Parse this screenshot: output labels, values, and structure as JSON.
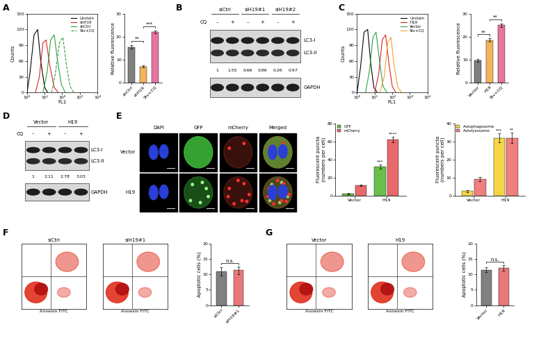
{
  "chart_data": [
    {
      "panel": "A",
      "type": "line",
      "log": "x",
      "xlabel": "FL1",
      "ylabel": "Counts",
      "xlim": [
        1,
        10000
      ],
      "xticks": [
        {
          "value": 1,
          "label": "10⁰"
        },
        {
          "value": 10,
          "label": "10¹"
        },
        {
          "value": 100,
          "label": "10²"
        },
        {
          "value": 1000,
          "label": "10³"
        },
        {
          "value": 10000,
          "label": "10⁴"
        }
      ],
      "ylim": [
        0,
        150
      ],
      "yticks": [
        0,
        30,
        60,
        90,
        120,
        150
      ],
      "legend": "upper right",
      "series": [
        {
          "name": "Unstain",
          "color": "#000000",
          "line_style": "solid",
          "x": [
            1,
            1.5,
            2.5,
            4,
            6,
            10,
            15
          ],
          "values": [
            0,
            40,
            110,
            120,
            60,
            10,
            0
          ]
        },
        {
          "name": "shH19",
          "color": "#e02020",
          "line_style": "solid",
          "x": [
            3,
            5,
            8,
            12,
            20,
            35,
            60
          ],
          "values": [
            0,
            30,
            95,
            100,
            50,
            10,
            0
          ]
        },
        {
          "name": "shCtrl",
          "color": "#2e9e3e",
          "line_style": "solid",
          "x": [
            8,
            14,
            22,
            35,
            55,
            90,
            150
          ],
          "values": [
            0,
            40,
            100,
            110,
            60,
            15,
            0
          ]
        },
        {
          "name": "Stv+CQ",
          "color": "#2e9e3e",
          "line_style": "dashed",
          "x": [
            25,
            40,
            70,
            110,
            170,
            280,
            450
          ],
          "values": [
            0,
            35,
            95,
            105,
            55,
            12,
            0
          ]
        }
      ]
    },
    {
      "panel": "A",
      "type": "bar",
      "categories": [
        "shCtrl",
        "shH19",
        "Stv+CQ"
      ],
      "values": [
        15.5,
        7,
        22
      ],
      "errors": [
        0.8,
        0.5,
        0.7
      ],
      "colors": [
        "#808080",
        "#f2b35a",
        "#e8749f"
      ],
      "ylabel": "Relative fluorescence",
      "ylim": [
        0,
        30
      ],
      "yticks": [
        0,
        10,
        20,
        30
      ],
      "annotations": [
        {
          "text": "**",
          "between": [
            "shCtrl",
            "shH19"
          ]
        },
        {
          "text": "***",
          "between": [
            "shH19",
            "Stv+CQ"
          ]
        }
      ]
    },
    {
      "panel": "C",
      "type": "line",
      "log": "x",
      "xlabel": "FL1",
      "ylabel": "Counts",
      "xlim": [
        1,
        10000
      ],
      "xticks": [
        {
          "value": 1,
          "label": "10⁰"
        },
        {
          "value": 10,
          "label": "10¹"
        },
        {
          "value": 100,
          "label": "10²"
        },
        {
          "value": 1000,
          "label": "10³"
        },
        {
          "value": 10000,
          "label": "10⁴"
        }
      ],
      "ylim": [
        0,
        150
      ],
      "yticks": [
        0,
        30,
        60,
        90,
        120,
        150
      ],
      "legend": "upper right",
      "series": [
        {
          "name": "Unstain",
          "color": "#000000",
          "line_style": "solid",
          "x": [
            1,
            1.6,
            2.5,
            4,
            6,
            9,
            14
          ],
          "values": [
            0,
            50,
            115,
            120,
            55,
            10,
            0
          ]
        },
        {
          "name": "H19",
          "color": "#e02020",
          "line_style": "solid",
          "x": [
            10,
            17,
            27,
            42,
            65,
            100,
            160
          ],
          "values": [
            0,
            35,
            100,
            110,
            55,
            12,
            0
          ]
        },
        {
          "name": "Vector",
          "color": "#2e9e3e",
          "line_style": "solid",
          "x": [
            3,
            5,
            8,
            12,
            19,
            30,
            50
          ],
          "values": [
            0,
            40,
            105,
            115,
            60,
            12,
            0
          ]
        },
        {
          "name": "Stv+CQ",
          "color": "#f0a030",
          "line_style": "solid",
          "x": [
            20,
            35,
            55,
            85,
            130,
            210,
            350
          ],
          "values": [
            0,
            30,
            95,
            105,
            50,
            10,
            0
          ]
        }
      ]
    },
    {
      "panel": "C",
      "type": "bar",
      "categories": [
        "Vector",
        "H19",
        "Stv+CQ"
      ],
      "values": [
        9.5,
        18.5,
        25
      ],
      "errors": [
        0.6,
        0.7,
        0.8
      ],
      "colors": [
        "#808080",
        "#f2b35a",
        "#e8749f"
      ],
      "ylabel": "Relative fluorescence",
      "ylim": [
        0,
        30
      ],
      "yticks": [
        0,
        10,
        20,
        30
      ],
      "annotations": [
        {
          "text": "**",
          "between": [
            "Vector",
            "H19"
          ]
        },
        {
          "text": "**",
          "between": [
            "H19",
            "Stv+CQ"
          ]
        }
      ]
    },
    {
      "panel": "E",
      "type": "bar",
      "categories": [
        "Vector",
        "H19"
      ],
      "series": [
        {
          "name": "GFP",
          "color": "#6abf4b",
          "values": [
            2,
            32
          ],
          "errors": [
            0.5,
            2
          ]
        },
        {
          "name": "mCherry",
          "color": "#e8696b",
          "values": [
            11,
            62
          ],
          "errors": [
            0.8,
            3
          ]
        }
      ],
      "ylabel": "Fluorescent puncta\n(numbers per cell)",
      "ylim": [
        0,
        80
      ],
      "yticks": [
        0,
        20,
        40,
        60,
        80
      ],
      "legend": "upper left",
      "annotations": [
        {
          "text": "***",
          "series": "GFP",
          "category": "H19"
        },
        {
          "text": "****",
          "series": "mCherry",
          "category": "H19"
        }
      ]
    },
    {
      "panel": "E",
      "type": "bar",
      "categories": [
        "Vector",
        "H19"
      ],
      "series": [
        {
          "name": "Autophagosome",
          "color": "#f5d547",
          "values": [
            2.5,
            32
          ],
          "errors": [
            0.6,
            2.5
          ]
        },
        {
          "name": "Autolysosome",
          "color": "#f07f7f",
          "values": [
            9,
            32
          ],
          "errors": [
            1.2,
            3
          ]
        }
      ],
      "ylabel": "Fluorescent puncta\n(numbers per cell)",
      "ylim": [
        0,
        40
      ],
      "yticks": [
        0,
        10,
        20,
        30,
        40
      ],
      "legend": "upper left",
      "annotations": [
        {
          "text": "***",
          "series": "Autophagosome",
          "category": "H19"
        },
        {
          "text": "**",
          "series": "Autolysosome",
          "category": "H19"
        }
      ]
    },
    {
      "panel": "F",
      "type": "bar",
      "categories": [
        "siCtrl",
        "siH19#1"
      ],
      "values": [
        11,
        11.3
      ],
      "errors": [
        1.3,
        1.2
      ],
      "colors": [
        "#808080",
        "#e8787a"
      ],
      "ylabel": "Apoptotic cells (%)",
      "ylim": [
        0,
        20
      ],
      "yticks": [
        0,
        5,
        10,
        15,
        20
      ],
      "annotations": [
        {
          "text": "n.s.",
          "between": [
            "siCtrl",
            "siH19#1"
          ]
        }
      ]
    },
    {
      "panel": "G",
      "type": "bar",
      "categories": [
        "Vector",
        "H19"
      ],
      "values": [
        11.5,
        12
      ],
      "errors": [
        0.8,
        0.9
      ],
      "colors": [
        "#808080",
        "#e8787a"
      ],
      "ylabel": "Apoptotic cells (%)",
      "ylim": [
        0,
        20
      ],
      "yticks": [
        0,
        5,
        10,
        15,
        20
      ],
      "annotations": [
        {
          "text": "n.s.",
          "between": [
            "Vector",
            "H19"
          ]
        }
      ]
    }
  ],
  "blots": [
    {
      "panel": "B",
      "treatment_label": "CQ",
      "row_labels": [
        "LC3-I",
        "LC3-II",
        "GAPDH"
      ],
      "groups": [
        {
          "name": "siCtrl",
          "lanes": [
            {
              "treatment": "–",
              "ratio": 1
            },
            {
              "treatment": "+",
              "ratio": 1.55
            }
          ]
        },
        {
          "name": "siH19#1",
          "lanes": [
            {
              "treatment": "–",
              "ratio": 0.66
            },
            {
              "treatment": "+",
              "ratio": 0.86
            }
          ]
        },
        {
          "name": "siH19#2",
          "lanes": [
            {
              "treatment": "–",
              "ratio": 0.26
            },
            {
              "treatment": "+",
              "ratio": 0.97
            }
          ]
        }
      ]
    },
    {
      "panel": "D",
      "treatment_label": "CQ",
      "row_labels": [
        "LC3-I",
        "LC3-II",
        "GAPDH"
      ],
      "groups": [
        {
          "name": "Vector",
          "lanes": [
            {
              "treatment": "–",
              "ratio": 1
            },
            {
              "treatment": "+",
              "ratio": 2.11
            }
          ]
        },
        {
          "name": "H19",
          "lanes": [
            {
              "treatment": "–",
              "ratio": 2.78
            },
            {
              "treatment": "+",
              "ratio": 3.03
            }
          ]
        }
      ]
    }
  ],
  "images": {
    "panel": "E",
    "columns": [
      "DAPI",
      "GFP",
      "mCherry",
      "Merged"
    ],
    "rows": [
      "Vector",
      "H19"
    ]
  },
  "flow_dot_plots": [
    {
      "panel": "F",
      "xlabel": "Annexin FITC",
      "plots": [
        {
          "title": "siCtrl"
        },
        {
          "title": "siH19#1"
        }
      ]
    },
    {
      "panel": "G",
      "xlabel": "Annexin FITC",
      "plots": [
        {
          "title": "Vector"
        },
        {
          "title": "H19"
        }
      ]
    }
  ]
}
